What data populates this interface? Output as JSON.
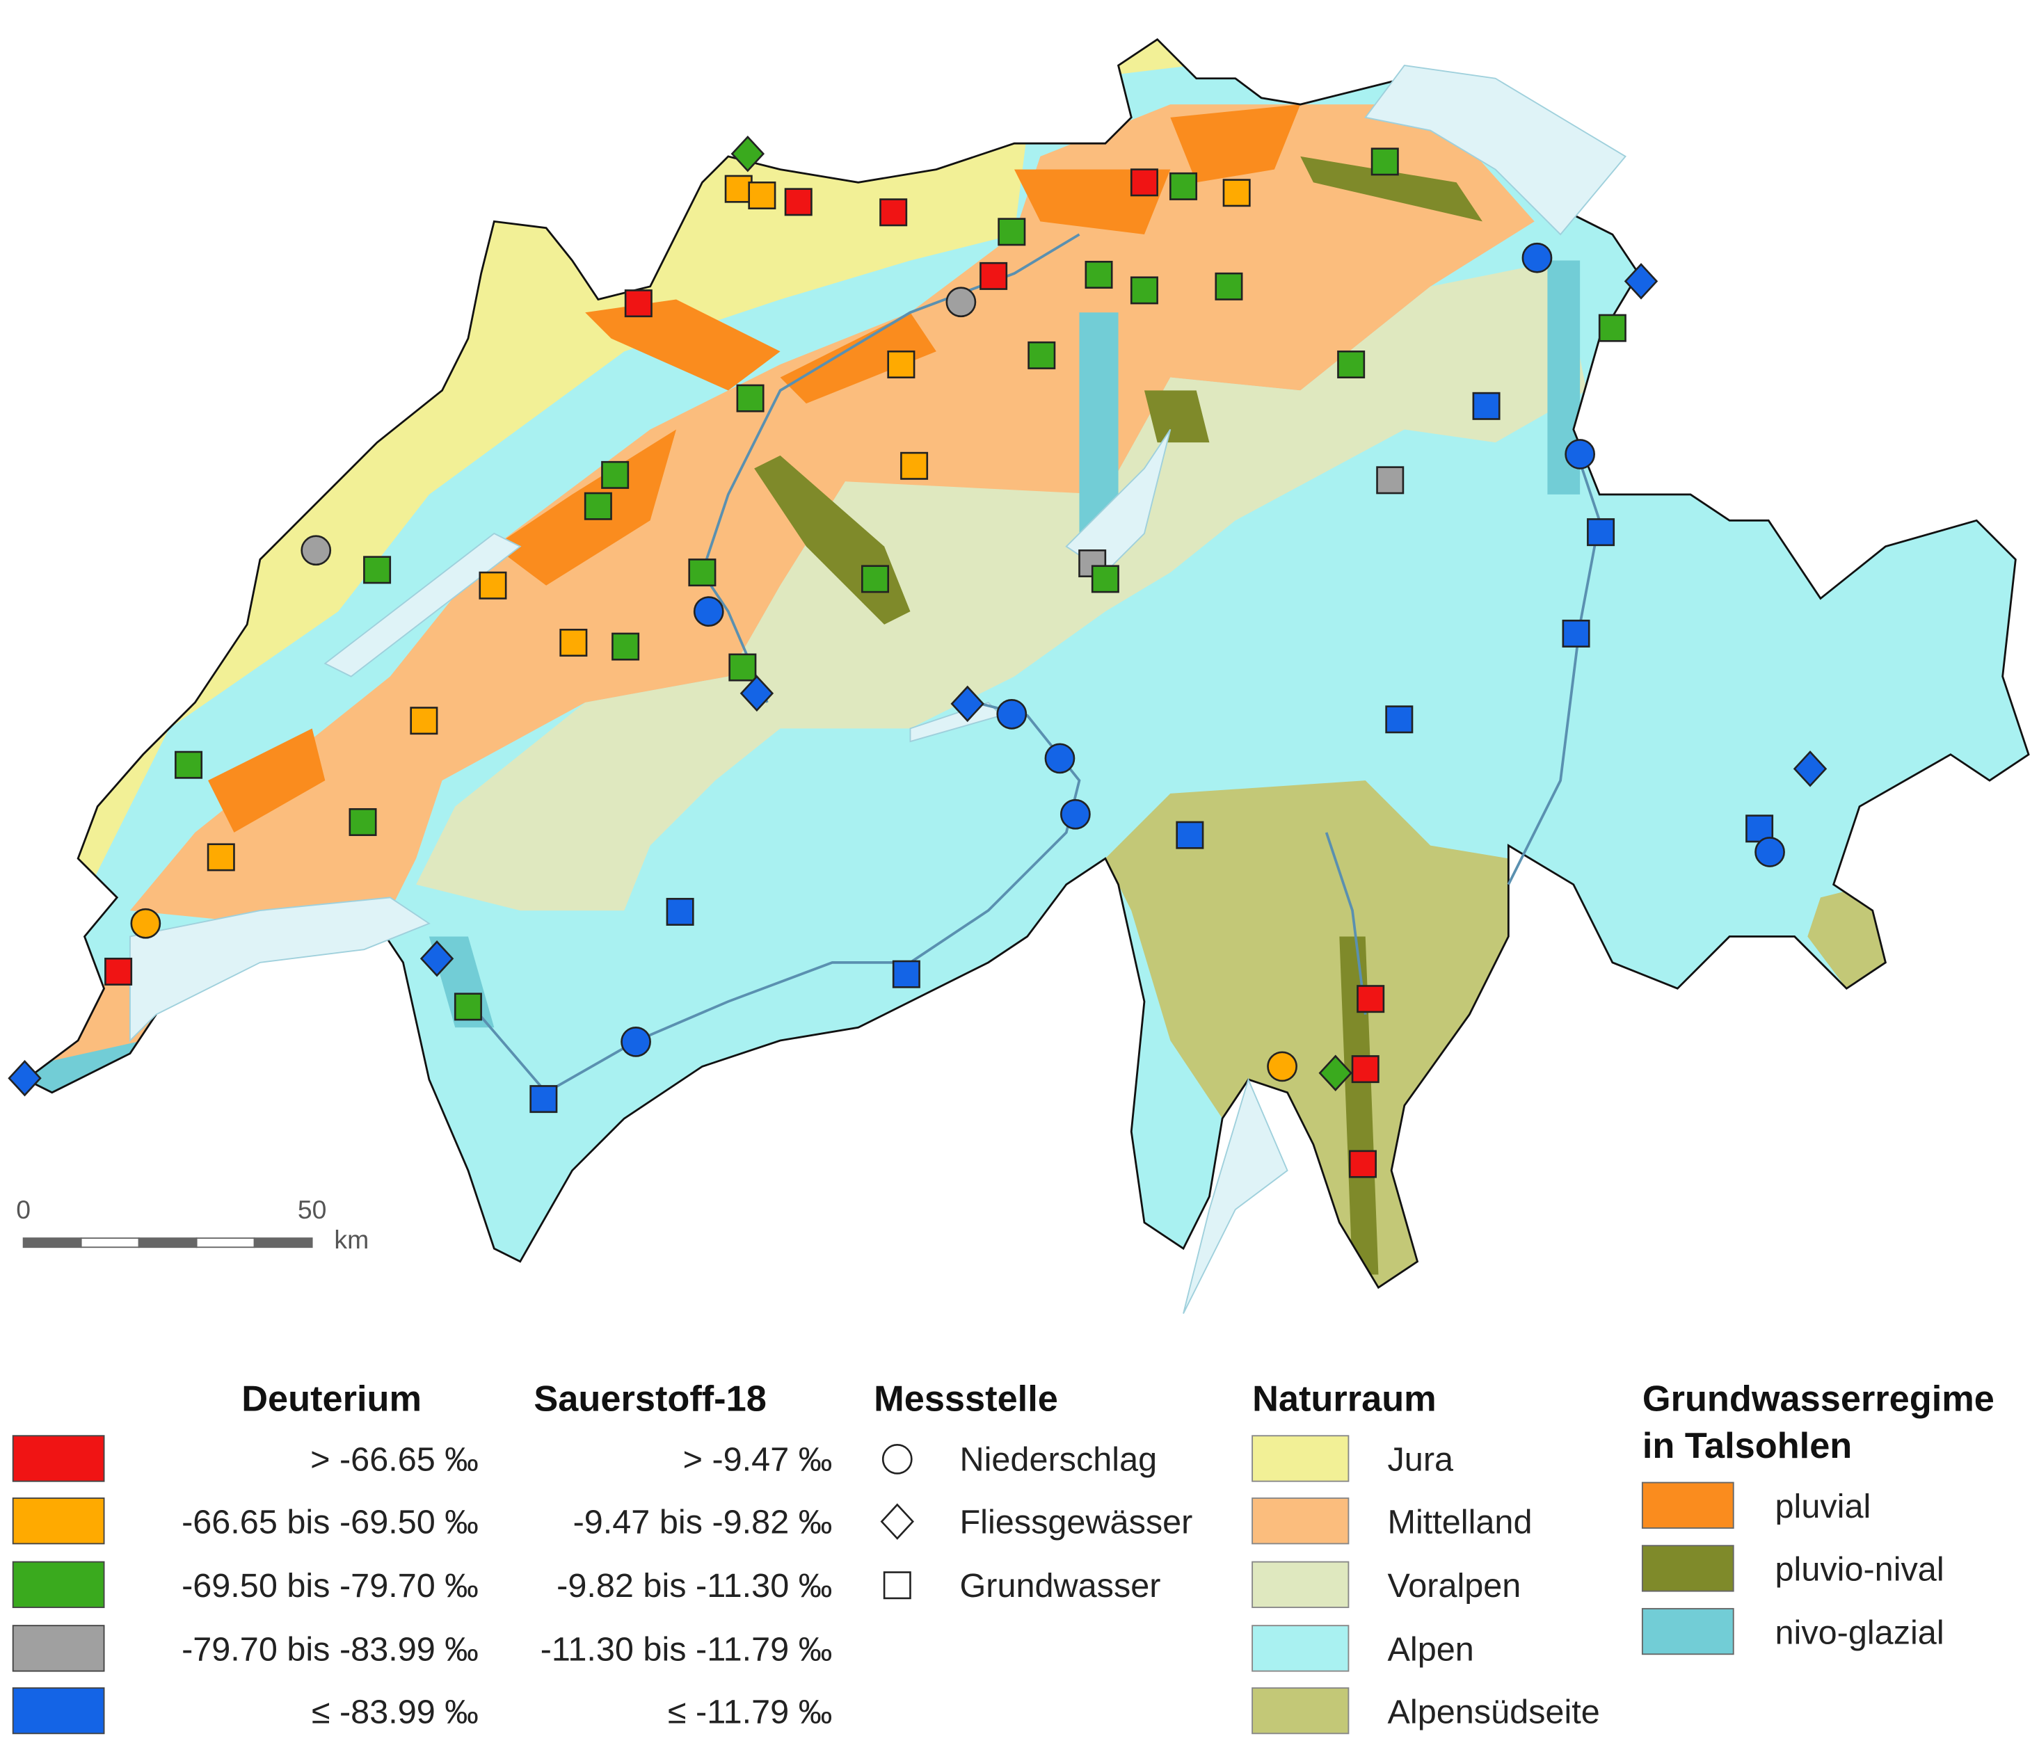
{
  "legend": {
    "deuterium": {
      "title": "Deuterium",
      "classes": [
        {
          "label": "> -66.65 ‰",
          "color": "#f01414"
        },
        {
          "label": "-66.65 bis -69.50 ‰",
          "color": "#ffaa00"
        },
        {
          "label": "-69.50 bis -79.70 ‰",
          "color": "#3aaa1e"
        },
        {
          "label": "-79.70 bis -83.99 ‰",
          "color": "#a0a0a0"
        },
        {
          "label": "≤ -83.99 ‰",
          "color": "#1464e6"
        }
      ]
    },
    "sauerstoff": {
      "title": "Sauerstoff-18",
      "labels": [
        "> -9.47 ‰",
        "-9.47 bis -9.82 ‰",
        "-9.82 bis -11.30 ‰",
        "-11.30 bis -11.79 ‰",
        "≤ -11.79 ‰"
      ]
    },
    "messstelle": {
      "title": "Messstelle",
      "items": [
        "Niederschlag",
        "Fliessgewässer",
        "Grundwasser"
      ]
    },
    "naturraum": {
      "title": "Naturraum",
      "items": [
        {
          "label": "Jura",
          "color": "#f2f096"
        },
        {
          "label": "Mittelland",
          "color": "#fbbd7d"
        },
        {
          "label": "Voralpen",
          "color": "#dfe8bf"
        },
        {
          "label": "Alpen",
          "color": "#a9f1f1"
        },
        {
          "label": "Alpensüdseite",
          "color": "#c3c877"
        }
      ]
    },
    "regime": {
      "title": [
        "Grundwasserregime",
        "in Talsohlen"
      ],
      "items": [
        {
          "label": "pluvial",
          "color": "#fa8c1e"
        },
        {
          "label": "pluvio-nival",
          "color": "#7f8a2a"
        },
        {
          "label": "nivo-glazial",
          "color": "#72cdd6"
        }
      ]
    }
  },
  "scale": {
    "labels": [
      "0",
      "50",
      "km"
    ]
  }
}
